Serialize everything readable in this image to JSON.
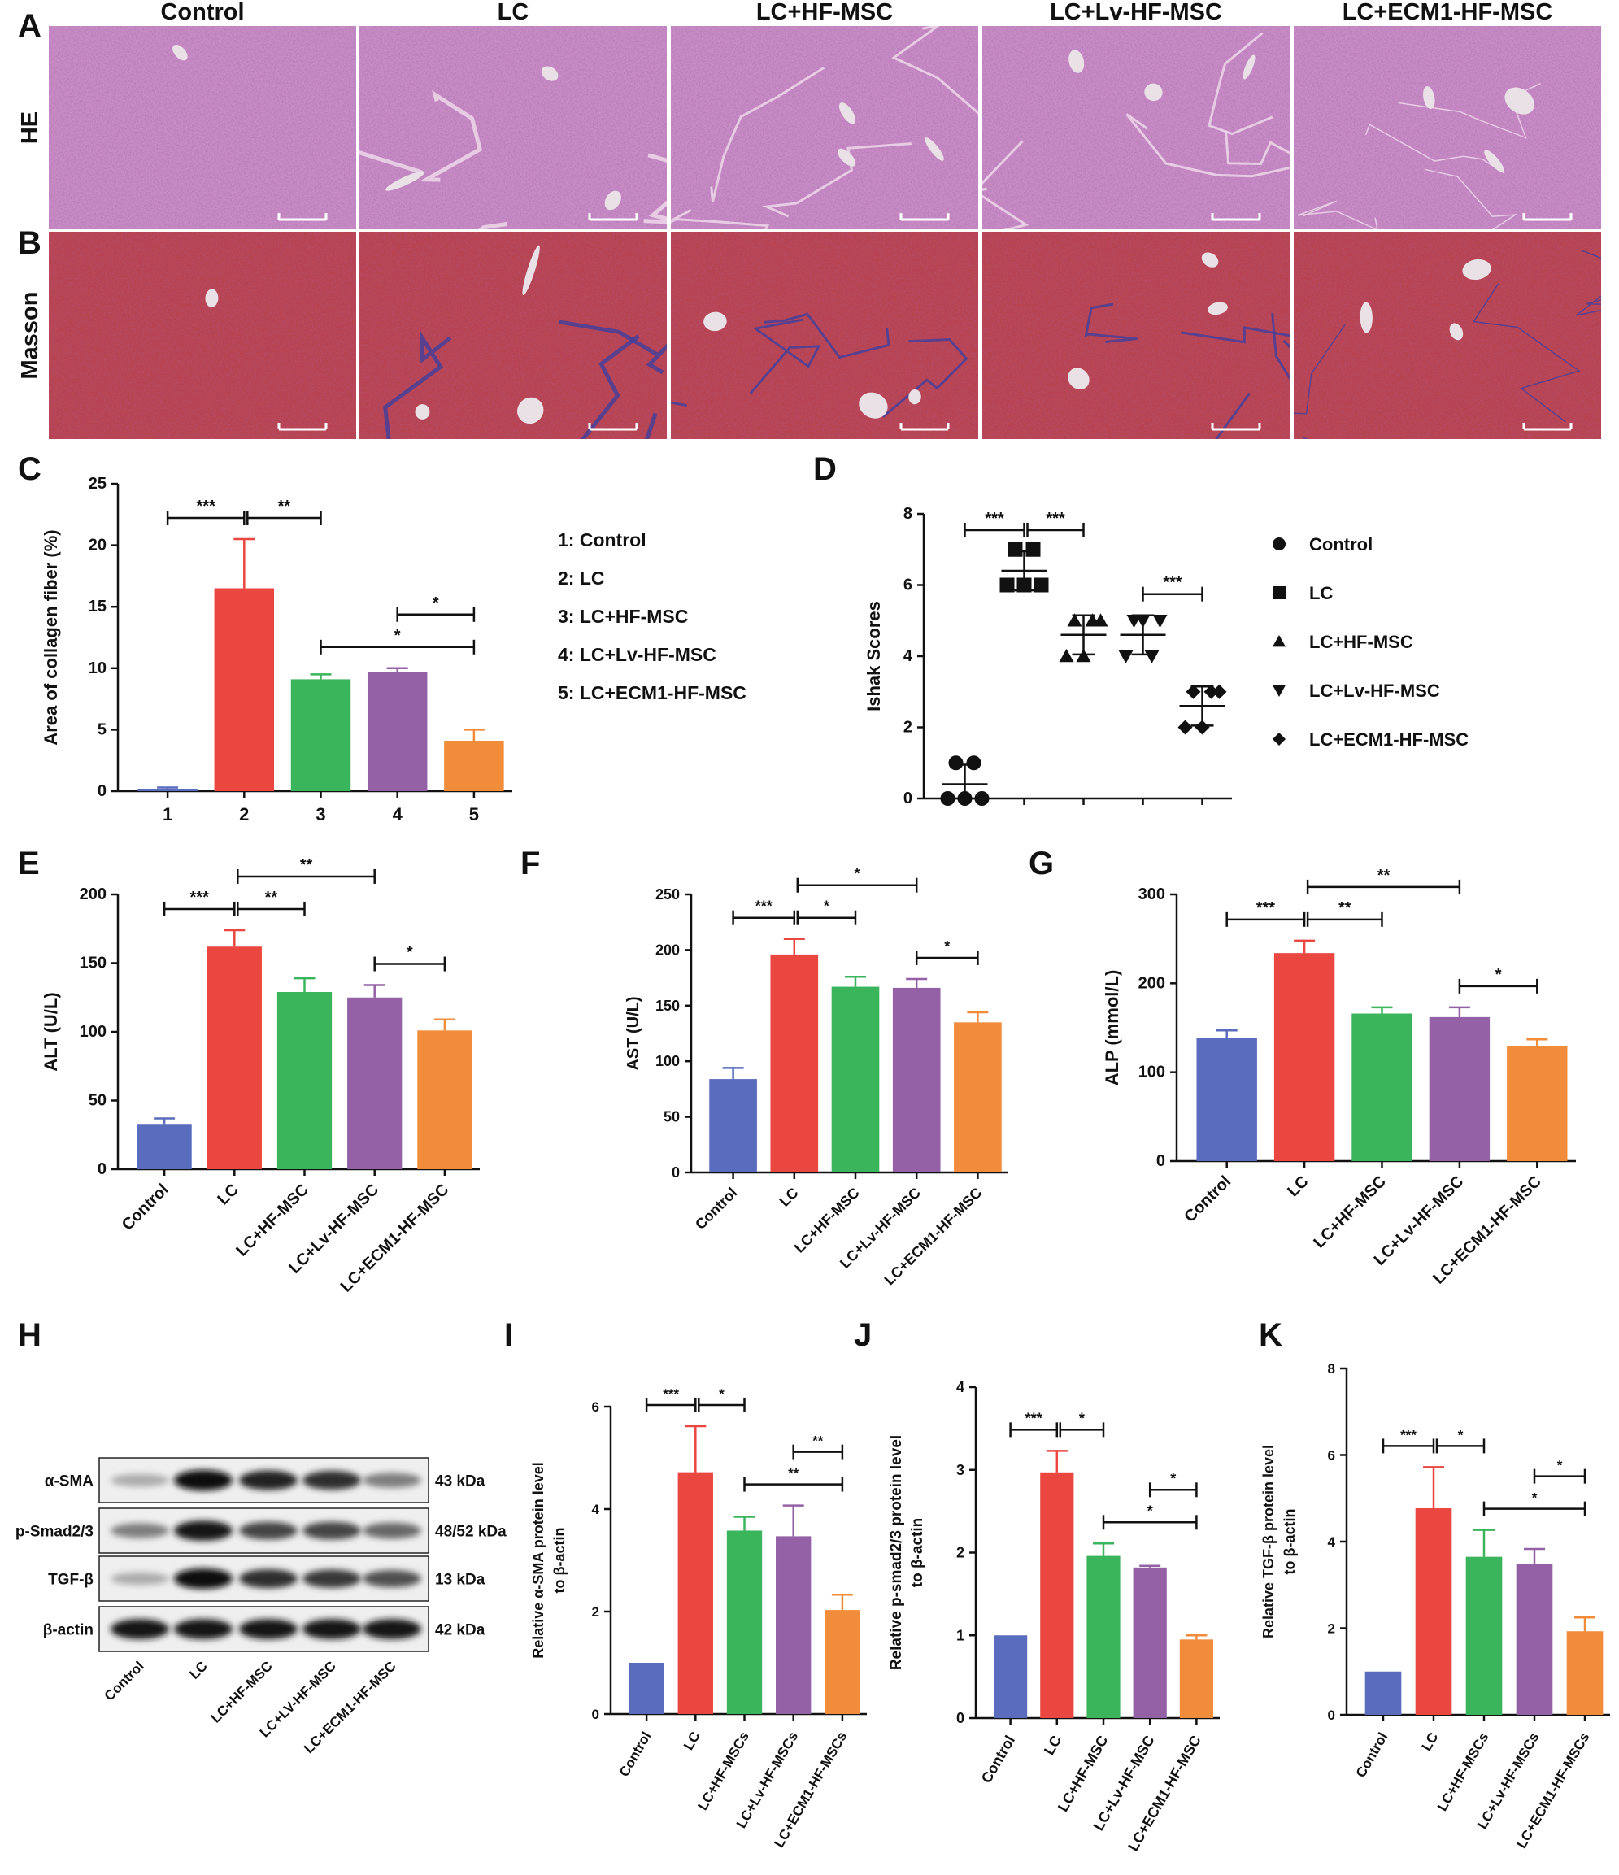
{
  "panel_letters": [
    "A",
    "B",
    "C",
    "D",
    "E",
    "F",
    "G",
    "H",
    "I",
    "J",
    "K"
  ],
  "histology": {
    "columns": [
      "Control",
      "LC",
      "LC+HF-MSC",
      "LC+Lv-HF-MSC",
      "LC+ECM1-HF-MSC"
    ],
    "rows": [
      "HE",
      "Masson"
    ],
    "colors": {
      "he_base": "#c98cc6",
      "he_dark": "#9b5aa3",
      "masson_base": "#b8434f",
      "masson_dark": "#8d2a3c",
      "fiber_blue": "#3a3fa0",
      "vessel": "#e9e1e6"
    }
  },
  "colors": {
    "control": "#5a6cbd",
    "lc": "#e9473f",
    "hf": "#3bb55c",
    "lv": "#9461a7",
    "ecm1": "#f18c3b"
  },
  "legend_c": [
    "1:  Control",
    "2:  LC",
    "3:  LC+HF-MSC",
    "4:  LC+Lv-HF-MSC",
    "5:  LC+ECM1-HF-MSC"
  ],
  "legend_d": [
    {
      "label": "Control",
      "marker": "circle"
    },
    {
      "label": "LC",
      "marker": "square"
    },
    {
      "label": "LC+HF-MSC",
      "marker": "triangle-up"
    },
    {
      "label": "LC+Lv-HF-MSC",
      "marker": "triangle-down"
    },
    {
      "label": "LC+ECM1-HF-MSC",
      "marker": "diamond"
    }
  ],
  "western": {
    "bands": [
      {
        "label": "α-SMA",
        "kda": "43 kDa",
        "intensity": [
          0.25,
          0.95,
          0.85,
          0.8,
          0.45
        ]
      },
      {
        "label": "p-Smad2/3",
        "kda": "48/52 kDa",
        "intensity": [
          0.45,
          0.9,
          0.7,
          0.7,
          0.55
        ]
      },
      {
        "label": "TGF-β",
        "kda": "13 kDa",
        "intensity": [
          0.25,
          0.95,
          0.8,
          0.75,
          0.65
        ]
      },
      {
        "label": "β-actin",
        "kda": "42 kDa",
        "intensity": [
          0.9,
          0.9,
          0.9,
          0.9,
          0.9
        ]
      }
    ],
    "lanes": [
      "Control",
      "LC",
      "LC+HF-MSC",
      "LC+LV-HF-MSC",
      "LC+ECM1-HF-MSC"
    ]
  },
  "chart_data": [
    {
      "id": "C",
      "type": "bar",
      "categories": [
        "1",
        "2",
        "3",
        "4",
        "5"
      ],
      "values": [
        0.2,
        16.5,
        9.1,
        9.7,
        4.1
      ],
      "errors": [
        0.1,
        4.0,
        0.4,
        0.3,
        0.9
      ],
      "ylabel": "Area of collagen fiber (%)",
      "ylim": [
        0,
        25
      ],
      "yticks": [
        0,
        5,
        10,
        15,
        20,
        25
      ],
      "significance": [
        {
          "from": 0,
          "to": 1,
          "label": "***"
        },
        {
          "from": 1,
          "to": 2,
          "label": "**"
        },
        {
          "from": 2,
          "to": 4,
          "label": "*"
        },
        {
          "from": 3,
          "to": 4,
          "label": "*"
        }
      ]
    },
    {
      "id": "D",
      "type": "scatter",
      "categories": [
        "Control",
        "LC",
        "LC+HF-MSC",
        "LC+Lv-HF-MSC",
        "LC+ECM1-HF-MSC"
      ],
      "ylabel": "Ishak Scores",
      "ylim": [
        0,
        8
      ],
      "yticks": [
        0,
        2,
        4,
        6,
        8
      ],
      "points": [
        [
          0,
          0,
          0,
          1,
          1
        ],
        [
          6,
          6,
          6,
          7,
          7
        ],
        [
          4,
          4,
          5,
          5,
          5
        ],
        [
          4,
          5,
          5,
          5,
          4
        ],
        [
          2,
          2,
          3,
          3,
          3
        ]
      ],
      "means": [
        0.4,
        6.4,
        4.6,
        4.6,
        2.6
      ],
      "sd": [
        0.55,
        0.55,
        0.55,
        0.55,
        0.55
      ],
      "significance": [
        {
          "from": 0,
          "to": 1,
          "label": "***"
        },
        {
          "from": 1,
          "to": 2,
          "label": "***"
        },
        {
          "from": 3,
          "to": 4,
          "label": "***"
        }
      ]
    },
    {
      "id": "E",
      "type": "bar",
      "categories": [
        "Control",
        "LC",
        "LC+HF-MSC",
        "LC+Lv-HF-MSC",
        "LC+ECM1-HF-MSC"
      ],
      "values": [
        33,
        162,
        129,
        125,
        101
      ],
      "errors": [
        4,
        12,
        10,
        9,
        8
      ],
      "ylabel": "ALT (U/L)",
      "ylim": [
        0,
        200
      ],
      "yticks": [
        0,
        50,
        100,
        150,
        200
      ],
      "significance": [
        {
          "from": 0,
          "to": 1,
          "label": "***"
        },
        {
          "from": 1,
          "to": 2,
          "label": "**"
        },
        {
          "from": 1,
          "to": 3,
          "label": "**"
        },
        {
          "from": 3,
          "to": 4,
          "label": "*"
        }
      ]
    },
    {
      "id": "F",
      "type": "bar",
      "categories": [
        "Control",
        "LC",
        "LC+HF-MSC",
        "LC+Lv-HF-MSC",
        "LC+ECM1-HF-MSC"
      ],
      "values": [
        84,
        196,
        167,
        166,
        135
      ],
      "errors": [
        10,
        14,
        9,
        8,
        9
      ],
      "ylabel": "AST (U/L)",
      "ylim": [
        0,
        250
      ],
      "yticks": [
        0,
        50,
        100,
        150,
        200,
        250
      ],
      "significance": [
        {
          "from": 0,
          "to": 1,
          "label": "***"
        },
        {
          "from": 1,
          "to": 2,
          "label": "*"
        },
        {
          "from": 1,
          "to": 3,
          "label": "*"
        },
        {
          "from": 3,
          "to": 4,
          "label": "*"
        }
      ]
    },
    {
      "id": "G",
      "type": "bar",
      "categories": [
        "Control",
        "LC",
        "LC+HF-MSC",
        "LC+Lv-HF-MSC",
        "LC+ECM1-HF-MSC"
      ],
      "values": [
        139,
        234,
        166,
        162,
        129
      ],
      "errors": [
        8,
        14,
        7,
        11,
        8
      ],
      "ylabel": "ALP (mmol/L)",
      "ylim": [
        0,
        300
      ],
      "yticks": [
        0,
        100,
        200,
        300
      ],
      "significance": [
        {
          "from": 0,
          "to": 1,
          "label": "***"
        },
        {
          "from": 1,
          "to": 2,
          "label": "**"
        },
        {
          "from": 1,
          "to": 3,
          "label": "**"
        },
        {
          "from": 3,
          "to": 4,
          "label": "*"
        }
      ]
    },
    {
      "id": "I",
      "type": "bar",
      "categories": [
        "Control",
        "LC",
        "LC+HF-MSCs",
        "LC+Lv-HF-MSCs",
        "LC+ECM1-HF-MSCs"
      ],
      "values": [
        1.0,
        4.72,
        3.58,
        3.47,
        2.03
      ],
      "errors": [
        0,
        0.9,
        0.27,
        0.6,
        0.3
      ],
      "ylabel": [
        "Relative α-SMA protein level",
        "to β-actin"
      ],
      "ylim": [
        0,
        6
      ],
      "yticks": [
        0,
        2,
        4,
        6
      ],
      "significance": [
        {
          "from": 0,
          "to": 1,
          "label": "***"
        },
        {
          "from": 1,
          "to": 2,
          "label": "*"
        },
        {
          "from": 2,
          "to": 4,
          "label": "**"
        },
        {
          "from": 3,
          "to": 4,
          "label": "**"
        }
      ]
    },
    {
      "id": "J",
      "type": "bar",
      "categories": [
        "Control",
        "LC",
        "LC+HF-MSC",
        "LC+Lv-HF-MSC",
        "LC+ECM1-HF-MSC"
      ],
      "values": [
        1.0,
        2.97,
        1.96,
        1.82,
        0.95
      ],
      "errors": [
        0,
        0.26,
        0.15,
        0.02,
        0.05
      ],
      "ylabel": [
        "Relative p-smad2/3 protein level",
        "to β-actin"
      ],
      "ylim": [
        0,
        4
      ],
      "yticks": [
        0,
        1,
        2,
        3,
        4
      ],
      "significance": [
        {
          "from": 0,
          "to": 1,
          "label": "***"
        },
        {
          "from": 1,
          "to": 2,
          "label": "*"
        },
        {
          "from": 2,
          "to": 4,
          "label": "*"
        },
        {
          "from": 3,
          "to": 4,
          "label": "*"
        }
      ]
    },
    {
      "id": "K",
      "type": "bar",
      "categories": [
        "Control",
        "LC",
        "LC+HF-MSCs",
        "LC+Lv-HF-MSCs",
        "LC+ECM1-HF-MSCs"
      ],
      "values": [
        1.0,
        4.77,
        3.65,
        3.48,
        1.93
      ],
      "errors": [
        0,
        0.95,
        0.62,
        0.35,
        0.32
      ],
      "ylabel": [
        "Relative TGF-β protein level",
        "to β-actin"
      ],
      "ylim": [
        0,
        8
      ],
      "yticks": [
        0,
        2,
        4,
        6,
        8
      ],
      "significance": [
        {
          "from": 0,
          "to": 1,
          "label": "***"
        },
        {
          "from": 1,
          "to": 2,
          "label": "*"
        },
        {
          "from": 2,
          "to": 4,
          "label": "*"
        },
        {
          "from": 3,
          "to": 4,
          "label": "*"
        }
      ]
    }
  ]
}
